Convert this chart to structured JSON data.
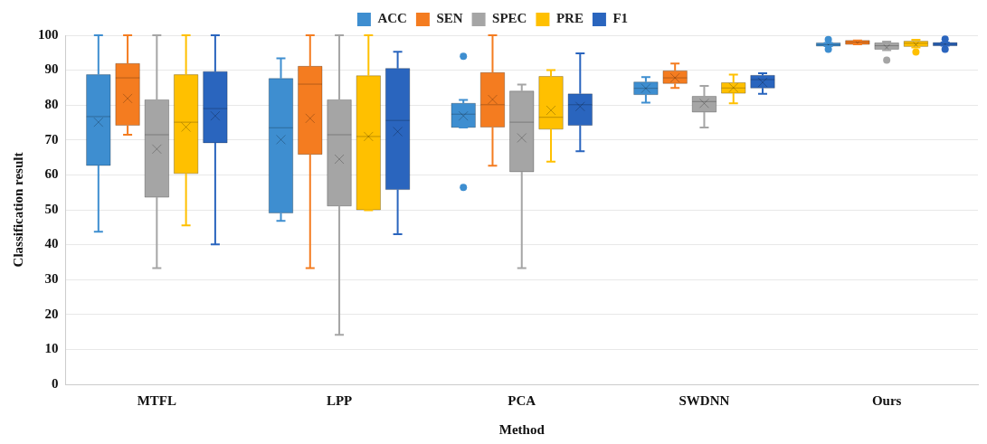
{
  "chart_data": {
    "type": "box",
    "xlabel": "Method",
    "ylabel": "Classification result",
    "categories": [
      "MTFL",
      "LPP",
      "PCA",
      "SWDNN",
      "Ours"
    ],
    "ylim": [
      0,
      100
    ],
    "yticks": [
      0,
      10,
      20,
      30,
      40,
      50,
      60,
      70,
      80,
      90,
      100
    ],
    "grid": "y",
    "legend": "top",
    "series": [
      {
        "name": "ACC",
        "color": "#3e8ed0",
        "boxes": [
          {
            "low": 43.7,
            "q1": 62.7,
            "median": 76.7,
            "q3": 88.7,
            "high": 100,
            "mean": 75.1
          },
          {
            "low": 46.8,
            "q1": 49.1,
            "median": 73.5,
            "q3": 87.6,
            "high": 93.4,
            "mean": 70.1
          },
          {
            "low": 73.6,
            "q1": 73.6,
            "median": 77.4,
            "q3": 80.5,
            "high": 81.5,
            "mean": 76.9,
            "outliers": [
              94.0,
              56.4
            ]
          },
          {
            "low": 80.7,
            "q1": 83.0,
            "median": 84.8,
            "q3": 86.6,
            "high": 88.0,
            "mean": 84.8
          },
          {
            "low": 96.9,
            "q1": 96.9,
            "median": 97.3,
            "q3": 97.8,
            "high": 97.8,
            "mean": 97.3,
            "outliers": [
              98.8,
              96.0
            ]
          }
        ]
      },
      {
        "name": "SEN",
        "color": "#f47c20",
        "boxes": [
          {
            "low": 71.5,
            "q1": 74.2,
            "median": 87.8,
            "q3": 91.9,
            "high": 100,
            "mean": 81.9
          },
          {
            "low": 33.3,
            "q1": 65.9,
            "median": 86.0,
            "q3": 91.1,
            "high": 100,
            "mean": 76.2
          },
          {
            "low": 62.6,
            "q1": 73.7,
            "median": 80.1,
            "q3": 89.3,
            "high": 100,
            "mean": 81.6
          },
          {
            "low": 84.9,
            "q1": 86.2,
            "median": 87.8,
            "q3": 89.8,
            "high": 91.9,
            "mean": 87.8
          },
          {
            "low": 97.4,
            "q1": 97.4,
            "median": 98.0,
            "q3": 98.5,
            "high": 98.5,
            "mean": 97.7
          }
        ]
      },
      {
        "name": "SPEC",
        "color": "#a5a5a5",
        "boxes": [
          {
            "low": 33.3,
            "q1": 53.6,
            "median": 71.5,
            "q3": 81.5,
            "high": 100,
            "mean": 67.4
          },
          {
            "low": 14.2,
            "q1": 51.1,
            "median": 71.5,
            "q3": 81.5,
            "high": 100,
            "mean": 64.5
          },
          {
            "low": 33.3,
            "q1": 60.9,
            "median": 75.1,
            "q3": 84.0,
            "high": 85.9,
            "mean": 70.6
          },
          {
            "low": 73.6,
            "q1": 78.0,
            "median": 81.0,
            "q3": 82.5,
            "high": 85.5,
            "mean": 80.5
          },
          {
            "low": 95.7,
            "q1": 96.0,
            "median": 97.0,
            "q3": 97.8,
            "high": 98.2,
            "mean": 96.5,
            "outliers": [
              92.9
            ]
          }
        ]
      },
      {
        "name": "PRE",
        "color": "#ffc000",
        "boxes": [
          {
            "low": 45.5,
            "q1": 60.4,
            "median": 75.1,
            "q3": 88.7,
            "high": 100,
            "mean": 73.7
          },
          {
            "low": 49.9,
            "q1": 50.0,
            "median": 71.0,
            "q3": 88.4,
            "high": 100,
            "mean": 71.0
          },
          {
            "low": 63.8,
            "q1": 73.1,
            "median": 76.5,
            "q3": 88.2,
            "high": 90.0,
            "mean": 78.5
          },
          {
            "low": 80.5,
            "q1": 83.4,
            "median": 84.9,
            "q3": 86.4,
            "high": 88.7,
            "mean": 85.0
          },
          {
            "low": 96.5,
            "q1": 96.8,
            "median": 97.7,
            "q3": 98.3,
            "high": 98.7,
            "mean": 97.3,
            "outliers": [
              95.2
            ]
          }
        ]
      },
      {
        "name": "F1",
        "color": "#2a65be",
        "boxes": [
          {
            "low": 40.1,
            "q1": 69.2,
            "median": 79.0,
            "q3": 89.6,
            "high": 100,
            "mean": 76.9
          },
          {
            "low": 43.0,
            "q1": 55.8,
            "median": 75.6,
            "q3": 90.5,
            "high": 95.3,
            "mean": 72.4
          },
          {
            "low": 66.8,
            "q1": 74.2,
            "median": 80.1,
            "q3": 83.2,
            "high": 94.8,
            "mean": 79.6
          },
          {
            "low": 83.2,
            "q1": 84.9,
            "median": 87.3,
            "q3": 88.5,
            "high": 89.1,
            "mean": 86.5
          },
          {
            "low": 97.0,
            "q1": 97.0,
            "median": 97.4,
            "q3": 97.9,
            "high": 97.9,
            "mean": 97.4,
            "outliers": [
              98.9,
              96.0
            ]
          }
        ]
      }
    ]
  }
}
